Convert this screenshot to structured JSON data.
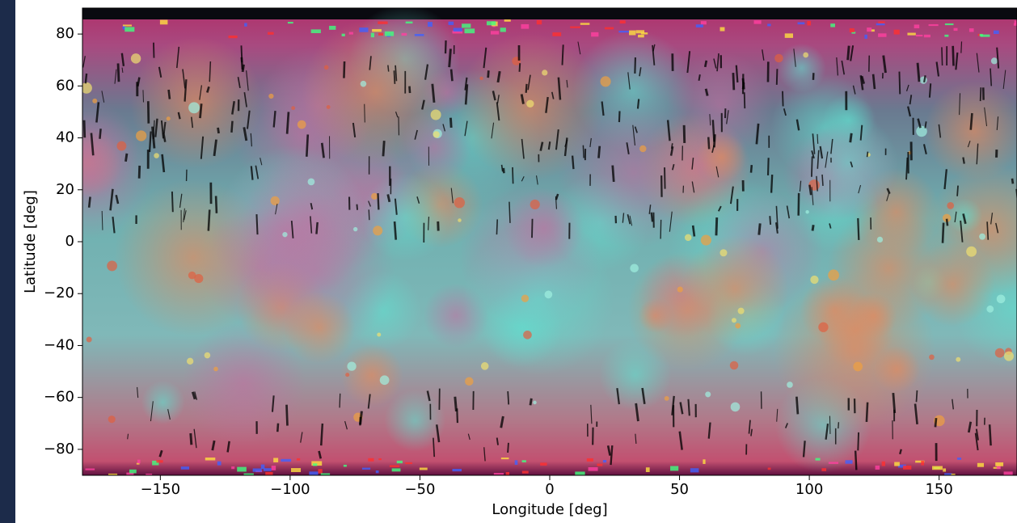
{
  "chart_data": {
    "type": "image",
    "xlabel": "Longitude [deg]",
    "ylabel": "Latitude [deg]",
    "xlim": [
      -180,
      180
    ],
    "ylim": [
      -90,
      90
    ],
    "xticks": [
      {
        "value": -150,
        "label": "−150"
      },
      {
        "value": -100,
        "label": "−100"
      },
      {
        "value": -50,
        "label": "−50"
      },
      0,
      50,
      100,
      150
    ],
    "yticks": [
      {
        "value": -80,
        "label": "−80"
      },
      {
        "value": -60,
        "label": "−60"
      },
      {
        "value": -40,
        "label": "−40"
      },
      {
        "value": -20,
        "label": "−20"
      },
      0,
      20,
      40,
      60,
      80
    ]
  }
}
